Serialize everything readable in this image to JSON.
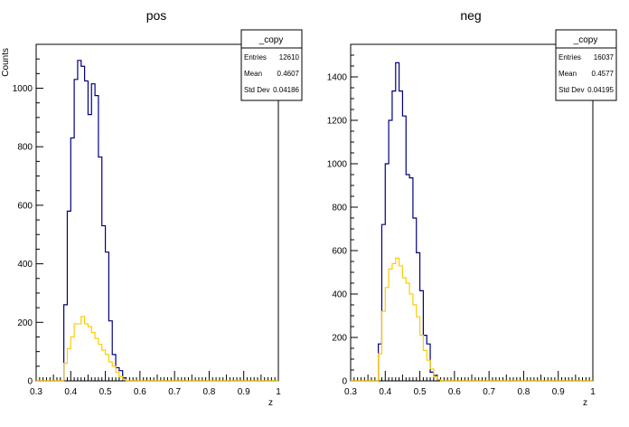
{
  "chart_data": [
    {
      "type": "histogram",
      "title": "pos",
      "xlabel": "z",
      "ylabel": "Counts",
      "xlim": [
        0.3,
        1.0
      ],
      "ylim": [
        0,
        1150
      ],
      "x_ticks": [
        "0.3",
        "0.4",
        "0.5",
        "0.6",
        "0.7",
        "0.8",
        "0.9",
        "1"
      ],
      "y_ticks": [
        "0",
        "200",
        "400",
        "600",
        "800",
        "1000"
      ],
      "y_tick_values": [
        0,
        200,
        400,
        600,
        800,
        1000
      ],
      "bin_width": 0.01,
      "series": [
        {
          "color": "#00007f",
          "x_start": 0.37,
          "values": [
            0,
            260,
            580,
            830,
            1030,
            1095,
            1075,
            1025,
            910,
            1015,
            975,
            765,
            530,
            440,
            205,
            90,
            45,
            35,
            10,
            0
          ]
        },
        {
          "color": "#ffcc00",
          "x_start": 0.37,
          "values": [
            0,
            60,
            110,
            150,
            195,
            195,
            220,
            195,
            185,
            165,
            145,
            125,
            105,
            90,
            65,
            50,
            30,
            15,
            5,
            0
          ]
        }
      ],
      "stats_box": {
        "title": "_copy",
        "rows": [
          {
            "label": "Entries",
            "value": "12610"
          },
          {
            "label": "Mean",
            "value": "0.4607"
          },
          {
            "label": "Std Dev",
            "value": "0.04186"
          }
        ]
      }
    },
    {
      "type": "histogram",
      "title": "neg",
      "xlabel": "z",
      "ylabel": "",
      "xlim": [
        0.3,
        1.0
      ],
      "ylim": [
        0,
        1550
      ],
      "x_ticks": [
        "0.3",
        "0.4",
        "0.5",
        "0.6",
        "0.7",
        "0.8",
        "0.9",
        "1"
      ],
      "y_ticks": [
        "0",
        "200",
        "400",
        "600",
        "800",
        "1000",
        "1200",
        "1400"
      ],
      "y_tick_values": [
        0,
        200,
        400,
        600,
        800,
        1000,
        1200,
        1400
      ],
      "bin_width": 0.01,
      "series": [
        {
          "color": "#00007f",
          "x_start": 0.37,
          "values": [
            0,
            170,
            720,
            1000,
            1200,
            1335,
            1465,
            1335,
            1220,
            950,
            935,
            750,
            590,
            415,
            210,
            170,
            40,
            25,
            5,
            0
          ]
        },
        {
          "color": "#ffcc00",
          "x_start": 0.37,
          "values": [
            0,
            125,
            320,
            430,
            515,
            540,
            565,
            530,
            475,
            450,
            400,
            350,
            295,
            210,
            140,
            95,
            55,
            20,
            5,
            0
          ]
        }
      ],
      "stats_box": {
        "title": "_copy",
        "rows": [
          {
            "label": "Entries",
            "value": "16037"
          },
          {
            "label": "Mean",
            "value": "0.4577"
          },
          {
            "label": "Std Dev",
            "value": "0.04195"
          }
        ]
      }
    }
  ]
}
